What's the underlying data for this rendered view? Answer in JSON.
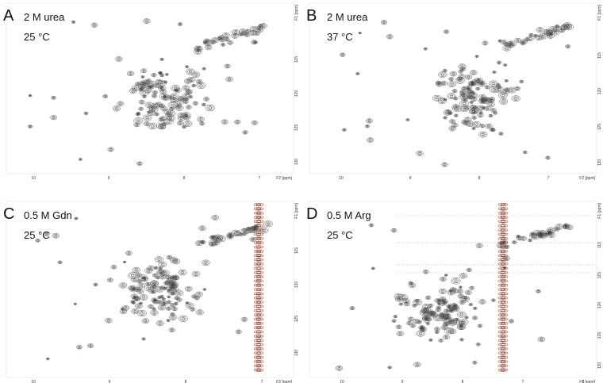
{
  "panels": [
    {
      "letter": "A",
      "condition": "2 M urea",
      "temperature": "25 °C",
      "x_axis": {
        "label": "F2 [ppm]",
        "ticks": [
          "10",
          "9",
          "8",
          "7"
        ]
      },
      "y_axis": {
        "label": "F1 [ppm]",
        "ticks": [
          "115",
          "120",
          "125",
          "130"
        ]
      }
    },
    {
      "letter": "B",
      "condition": "2 M urea",
      "temperature": "37 °C",
      "x_axis": {
        "label": "F2 [ppm]",
        "ticks": [
          "10",
          "9",
          "8",
          "7"
        ]
      },
      "y_axis": {
        "label": "F1 [ppm]",
        "ticks": [
          "115",
          "120",
          "125",
          "130"
        ]
      }
    },
    {
      "letter": "C",
      "condition": "0.5 M Gdn",
      "temperature": "25 °C",
      "x_axis": {
        "label": "F2 [ppm]",
        "ticks": [
          "10",
          "9",
          "8",
          "7"
        ]
      },
      "y_axis": {
        "label": "F1 [ppm]",
        "ticks": [
          "115",
          "120",
          "125",
          "130"
        ]
      }
    },
    {
      "letter": "D",
      "condition": "0.5 M Arg",
      "temperature": "25 °C",
      "x_axis": {
        "label": "F2 [ppm]",
        "ticks": [
          "10",
          "9",
          "8",
          "7",
          "6"
        ]
      },
      "y_axis": {
        "label": "F1 [ppm]",
        "ticks": [
          "110",
          "115",
          "120",
          "125",
          "130"
        ]
      }
    }
  ]
}
